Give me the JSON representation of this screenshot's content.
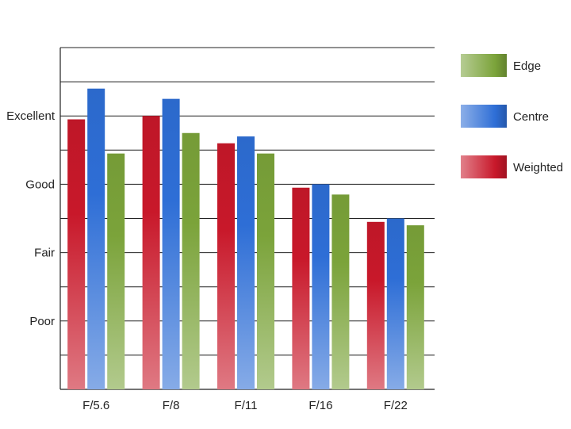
{
  "chart_data": {
    "type": "bar",
    "title": "",
    "xlabel": "",
    "ylabel": "",
    "categories": [
      "F/5.6",
      "F/8",
      "F/11",
      "F/16",
      "F/22"
    ],
    "y_ticks": [
      {
        "label": "Poor",
        "value": 2
      },
      {
        "label": "Fair",
        "value": 4
      },
      {
        "label": "Good",
        "value": 6
      },
      {
        "label": "Excellent",
        "value": 8
      }
    ],
    "ylim": [
      0,
      10
    ],
    "grid": true,
    "legend_position": "right",
    "series": [
      {
        "name": "Weighted",
        "color": "#c8182a",
        "values": [
          7.9,
          8.0,
          7.2,
          5.9,
          4.9
        ]
      },
      {
        "name": "Centre",
        "color": "#2e6ed6",
        "values": [
          8.8,
          8.5,
          7.4,
          6.0,
          5.0
        ]
      },
      {
        "name": "Edge",
        "color": "#7ba33a",
        "values": [
          6.9,
          7.5,
          6.9,
          5.7,
          4.8
        ]
      }
    ],
    "legend_order": [
      "Edge",
      "Centre",
      "Weighted"
    ]
  }
}
